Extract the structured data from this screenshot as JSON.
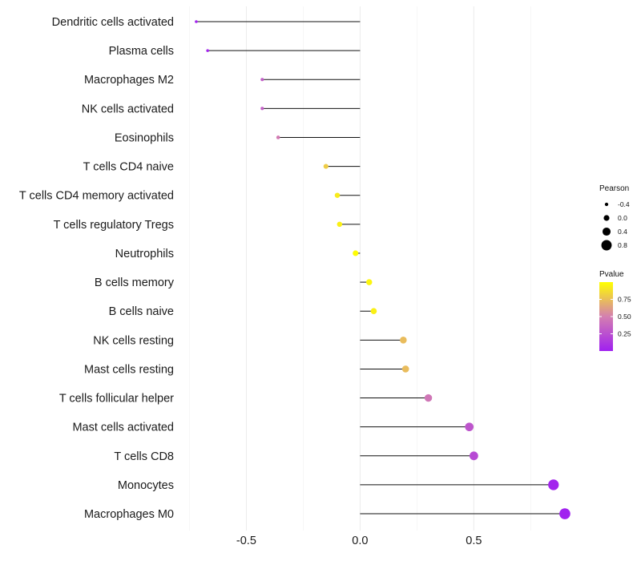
{
  "chart_data": {
    "type": "lollipop",
    "title": "",
    "xlabel": "",
    "ylabel": "",
    "xlim": [
      -0.755,
      0.96
    ],
    "xticks": [
      -0.5,
      0.0,
      0.5
    ],
    "xtick_labels": [
      "-0.5",
      "0.0",
      "0.5"
    ],
    "grid": true,
    "categories": [
      "Dendritic cells activated",
      "Plasma cells",
      "Macrophages M2",
      "NK cells activated",
      "Eosinophils",
      "T cells CD4 naive",
      "T cells CD4 memory activated",
      "T cells regulatory  Tregs ",
      "Neutrophils",
      "B cells memory",
      "B cells naive",
      "NK cells resting",
      "Mast cells resting",
      "T cells follicular helper",
      "Mast cells activated",
      "T cells CD8",
      "Monocytes",
      "Macrophages M0"
    ],
    "values": [
      -0.72,
      -0.67,
      -0.43,
      -0.43,
      -0.36,
      -0.15,
      -0.1,
      -0.09,
      -0.02,
      0.04,
      0.06,
      0.19,
      0.2,
      0.3,
      0.48,
      0.5,
      0.85,
      0.9
    ],
    "pvalues": [
      0.02,
      0.03,
      0.32,
      0.33,
      0.48,
      0.8,
      0.92,
      0.94,
      0.99,
      0.96,
      0.94,
      0.74,
      0.74,
      0.45,
      0.28,
      0.22,
      0.02,
      0.01
    ],
    "legend_size": {
      "title": "Pearson",
      "values": [
        -0.4,
        0.0,
        0.4,
        0.8
      ],
      "labels": [
        "-0.4",
        "0.0",
        "0.4",
        "0.8"
      ]
    },
    "legend_color": {
      "title": "Pvalue",
      "ticks": [
        0.75,
        0.5,
        0.25
      ],
      "labels": [
        "0.75",
        "0.50",
        "0.25"
      ],
      "range": [
        0.0,
        1.0
      ],
      "color_low": "#a020f0",
      "color_mid": "#d47fb0",
      "color_high": "#ffff00"
    },
    "legend_position": "right"
  }
}
